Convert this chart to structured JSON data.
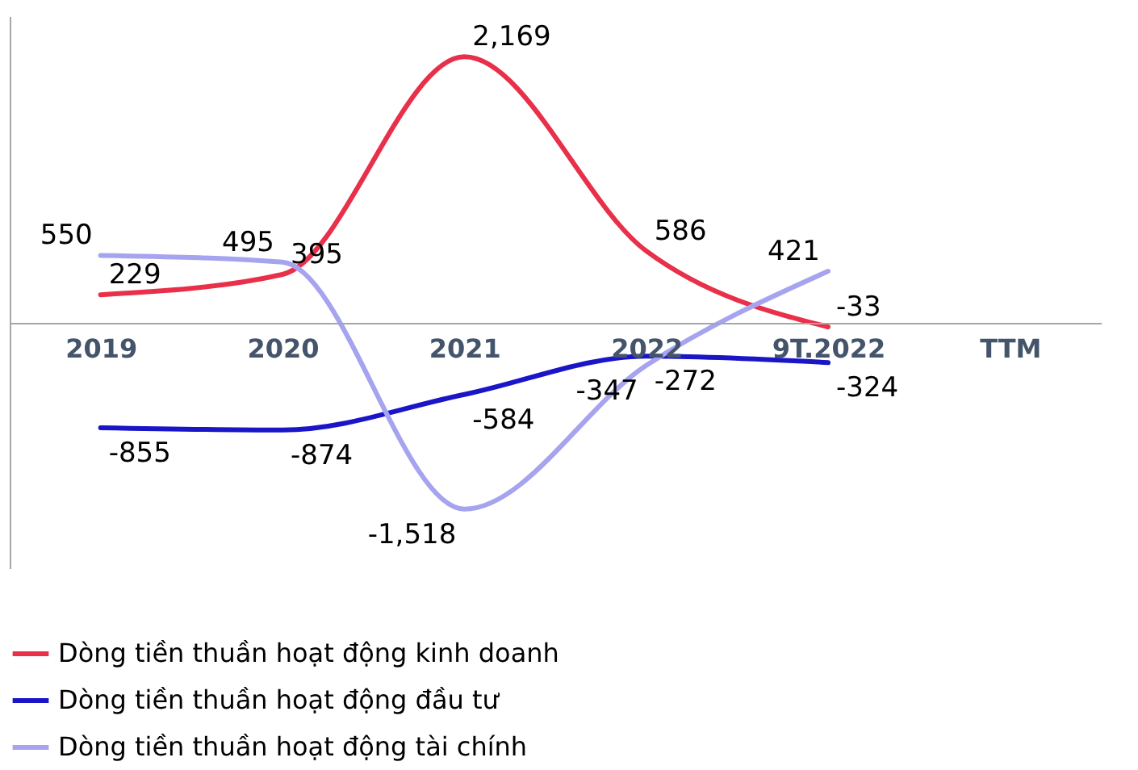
{
  "chart_data": {
    "type": "line",
    "categories": [
      "2019",
      "2020",
      "2021",
      "2022",
      "9T.2022",
      "TTM"
    ],
    "series": [
      {
        "name": "Dòng tiền thuần hoạt động kinh doanh",
        "color": "#e8304a",
        "values": [
          229,
          395,
          2169,
          586,
          -33,
          null
        ],
        "value_labels": [
          "229",
          "395",
          "2,169",
          "586",
          "-33",
          null
        ]
      },
      {
        "name": "Dòng tiền thuần hoạt động đầu tư",
        "color": "#1a16c8",
        "values": [
          -855,
          -874,
          -584,
          -272,
          -324,
          null
        ],
        "value_labels": [
          "-855",
          "-874",
          "-584",
          "-272",
          "-324",
          null
        ]
      },
      {
        "name": "Dòng tiền thuần hoạt động tài chính",
        "color": "#a6a3ef",
        "values": [
          550,
          495,
          -1518,
          -347,
          421,
          null
        ],
        "value_labels": [
          "550",
          "495",
          "-1,518",
          "-347",
          "421",
          null
        ]
      }
    ],
    "legend": "bottom",
    "grid": false,
    "tick_labels": "x",
    "marker": "none",
    "line_style": "solid"
  }
}
